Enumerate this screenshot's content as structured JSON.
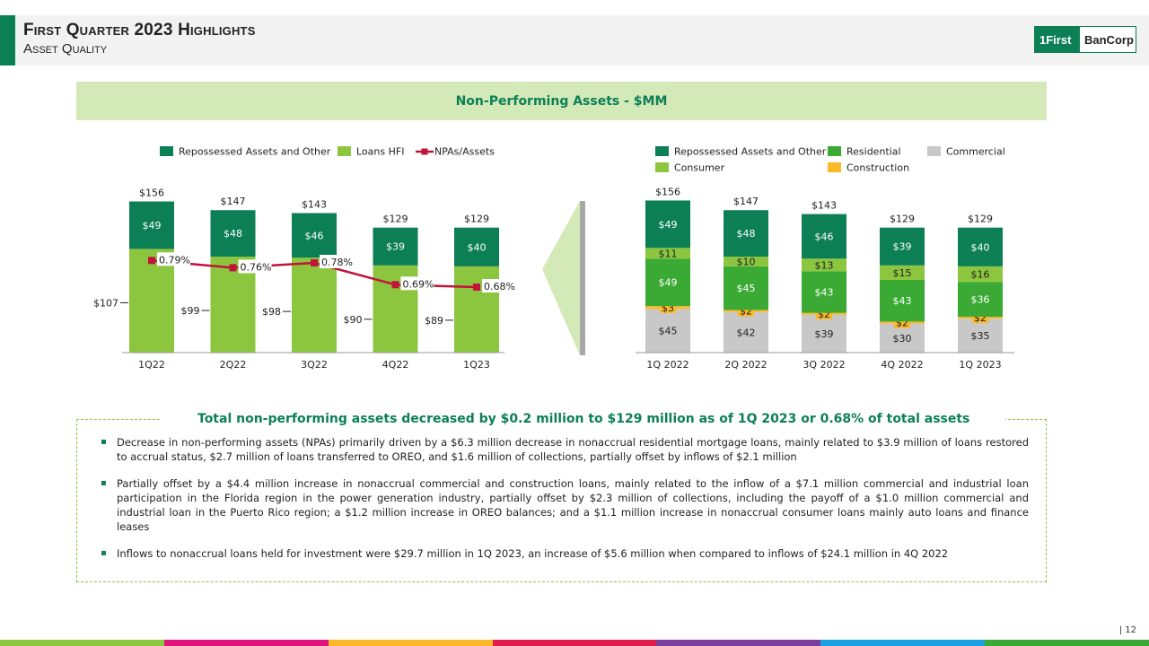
{
  "header": {
    "title": "First Quarter 2023 Highlights",
    "subtitle": "Asset Quality",
    "logo_left": "1First",
    "logo_right": "BanCorp"
  },
  "banner": "Non-Performing Assets - $MM",
  "colors": {
    "dark_green": "#0c7f55",
    "light_green": "#8cc63f",
    "residential": "#3aaa35",
    "commercial": "#c8c8c8",
    "construction": "#fbb829",
    "line": "#c0143c",
    "banner_bg": "#d3eab8"
  },
  "chart_data": [
    {
      "type": "bar",
      "stacked": true,
      "categories": [
        "1Q22",
        "2Q22",
        "3Q22",
        "4Q22",
        "1Q23"
      ],
      "series": [
        {
          "name": "Loans HFI",
          "values": [
            107,
            99,
            98,
            90,
            89
          ],
          "labels": [
            "$107",
            "$99",
            "$98",
            "$90",
            "$89"
          ],
          "color": "#8cc63f"
        },
        {
          "name": "Repossessed Assets and Other",
          "values": [
            49,
            48,
            46,
            39,
            40
          ],
          "labels": [
            "$49",
            "$48",
            "$46",
            "$39",
            "$40"
          ],
          "color": "#0c7f55"
        }
      ],
      "totals": [
        156,
        147,
        143,
        129,
        129
      ],
      "total_labels": [
        "$156",
        "$147",
        "$143",
        "$129",
        "$129"
      ],
      "line_series": {
        "name": "NPAs/Assets",
        "values": [
          0.79,
          0.76,
          0.78,
          0.69,
          0.68
        ],
        "labels": [
          "0.79%",
          "0.76%",
          "0.78%",
          "0.69%",
          "0.68%"
        ],
        "color": "#c0143c"
      },
      "legend": [
        "Repossessed Assets and Other",
        "Loans HFI",
        "NPAs/Assets"
      ],
      "legend_position": "top",
      "ylim": [
        0,
        160
      ]
    },
    {
      "type": "bar",
      "stacked": true,
      "categories": [
        "1Q 2022",
        "2Q 2022",
        "3Q 2022",
        "4Q 2022",
        "1Q 2023"
      ],
      "series": [
        {
          "name": "Commercial",
          "values": [
            45,
            42,
            39,
            30,
            35
          ],
          "labels": [
            "$45",
            "$42",
            "$39",
            "$30",
            "$35"
          ],
          "color": "#c8c8c8"
        },
        {
          "name": "Construction",
          "values": [
            3,
            2,
            2,
            2,
            2
          ],
          "labels": [
            "$3",
            "$2",
            "$2",
            "$2",
            "$2"
          ],
          "color": "#fbb829"
        },
        {
          "name": "Residential",
          "values": [
            49,
            45,
            43,
            43,
            36
          ],
          "labels": [
            "$49",
            "$45",
            "$43",
            "$43",
            "$36"
          ],
          "color": "#3aaa35"
        },
        {
          "name": "Consumer",
          "values": [
            11,
            10,
            13,
            15,
            16
          ],
          "labels": [
            "$11",
            "$10",
            "$13",
            "$15",
            "$16"
          ],
          "color": "#8cc63f"
        },
        {
          "name": "Repossessed Assets and Other",
          "values": [
            49,
            48,
            46,
            39,
            40
          ],
          "labels": [
            "$49",
            "$48",
            "$46",
            "$39",
            "$40"
          ],
          "color": "#0c7f55"
        }
      ],
      "totals": [
        156,
        147,
        143,
        129,
        129
      ],
      "total_labels": [
        "$156",
        "$147",
        "$143",
        "$129",
        "$129"
      ],
      "legend": [
        "Repossessed Assets and Other",
        "Residential",
        "Commercial",
        "Consumer",
        "Construction"
      ],
      "legend_position": "top",
      "ylim": [
        0,
        160
      ]
    }
  ],
  "summary": {
    "title": "Total non-performing assets decreased by $0.2 million to $129 million as of 1Q 2023 or 0.68% of total assets",
    "bullets": [
      "Decrease in non-performing assets (NPAs) primarily driven by a $6.3 million decrease in nonaccrual residential mortgage loans, mainly related to $3.9 million of loans restored to accrual status, $2.7 million of loans transferred to OREO, and $1.6 million of collections, partially offset by inflows of $2.1 million",
      "Partially offset by a $4.4 million increase in nonaccrual commercial and construction loans, mainly related to the inflow of a $7.1 million commercial and industrial loan participation in the Florida region in the power generation industry, partially offset by $2.3 million of collections, including the payoff of a $1.0 million commercial and industrial loan in the Puerto Rico region; a $1.2 million increase in OREO balances; and a $1.1 million increase in nonaccrual consumer loans mainly auto loans and finance leases",
      "Inflows to nonaccrual loans held for investment were $29.7 million in 1Q 2023, an increase of $5.6 million when compared to inflows of $24.1 million in 4Q 2022"
    ]
  },
  "page_number": "| 12",
  "footer_colors": [
    "#8cc63f",
    "#e0127e",
    "#fbb829",
    "#e01c4c",
    "#7b3fa0",
    "#1ba1e2",
    "#3aaa35"
  ]
}
